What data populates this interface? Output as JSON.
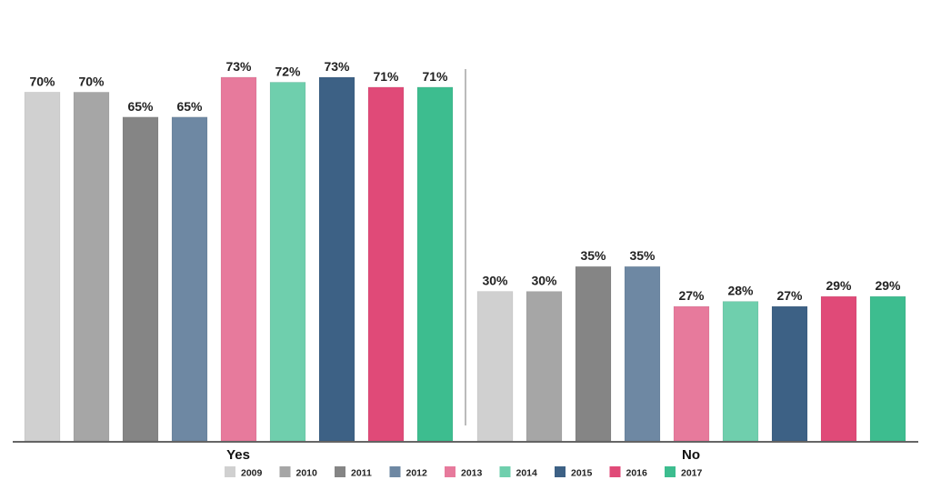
{
  "chart_data": {
    "type": "bar",
    "categories": [
      "Yes",
      "No"
    ],
    "series": [
      {
        "name": "2009",
        "color": "#d0d0d0",
        "values": [
          70,
          30
        ]
      },
      {
        "name": "2010",
        "color": "#a6a6a6",
        "values": [
          70,
          30
        ]
      },
      {
        "name": "2011",
        "color": "#858585",
        "values": [
          65,
          35
        ]
      },
      {
        "name": "2012",
        "color": "#6e88a3",
        "values": [
          65,
          35
        ]
      },
      {
        "name": "2013",
        "color": "#e77a9c",
        "values": [
          73,
          27
        ]
      },
      {
        "name": "2014",
        "color": "#6fcfad",
        "values": [
          72,
          28
        ]
      },
      {
        "name": "2015",
        "color": "#3d6185",
        "values": [
          73,
          27
        ]
      },
      {
        "name": "2016",
        "color": "#e04a78",
        "values": [
          71,
          29
        ]
      },
      {
        "name": "2017",
        "color": "#3dbd8f",
        "values": [
          71,
          29
        ]
      }
    ],
    "value_labels": [
      [
        "70%",
        "30%"
      ],
      [
        "70%",
        "30%"
      ],
      [
        "65%",
        "35%"
      ],
      [
        "65%",
        "35%"
      ],
      [
        "73%",
        "27%"
      ],
      [
        "72%",
        "28%"
      ],
      [
        "73%",
        "27%"
      ],
      [
        "71%",
        "29%"
      ],
      [
        "71%",
        "29%"
      ]
    ],
    "ylim": [
      0,
      100
    ],
    "grid": false,
    "legend_position": "bottom-center",
    "title": "",
    "xlabel": "",
    "ylabel": ""
  }
}
